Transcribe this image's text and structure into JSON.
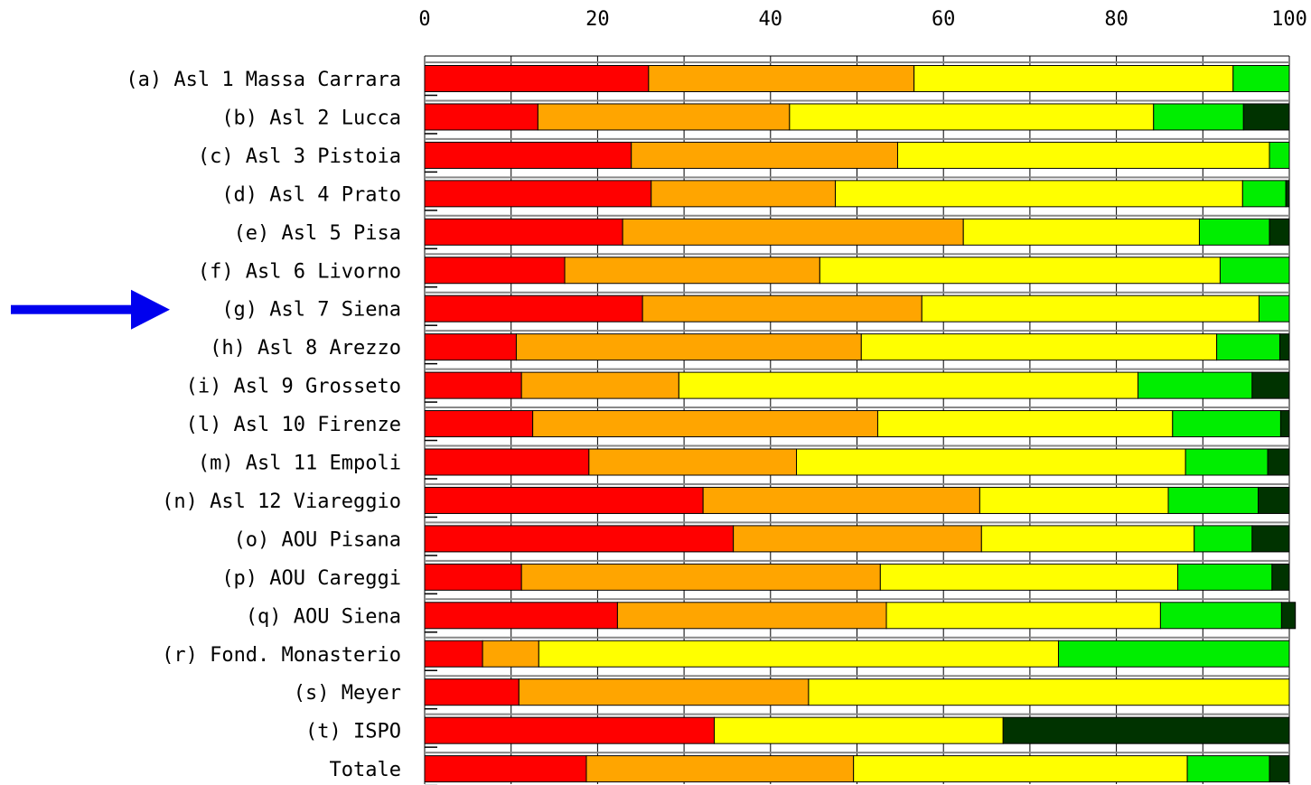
{
  "chart_data": {
    "type": "bar",
    "orientation": "horizontal",
    "stacked": true,
    "xlim": [
      0,
      100
    ],
    "xticks": [
      "0",
      "20",
      "40",
      "60",
      "80",
      "100"
    ],
    "grid": true,
    "categories": [
      "(a) Asl 1 Massa Carrara",
      "(b) Asl 2 Lucca",
      "(c) Asl 3 Pistoia",
      "(d) Asl 4 Prato",
      "(e) Asl 5 Pisa",
      "(f) Asl 6 Livorno",
      "(g) Asl 7 Siena",
      "(h) Asl 8 Arezzo",
      "(i) Asl 9 Grosseto",
      "(l) Asl 10 Firenze",
      "(m) Asl 11 Empoli",
      "(n) Asl 12 Viareggio",
      "(o) AOU Pisana",
      "(p) AOU Careggi",
      "(q) AOU Siena",
      "(r) Fond. Monasterio",
      "(s) Meyer",
      "(t) ISPO",
      "Totale"
    ],
    "highlighted_category": "(g) Asl 7 Siena",
    "series": [
      {
        "color": "#ff0000",
        "values": [
          25.9,
          13.1,
          23.9,
          26.2,
          22.9,
          16.2,
          25.2,
          10.6,
          11.2,
          12.5,
          19.0,
          32.2,
          35.7,
          11.2,
          22.3,
          6.7,
          10.9,
          33.5,
          18.7
        ]
      },
      {
        "color": "#ffa500",
        "values": [
          30.7,
          29.1,
          30.8,
          21.3,
          39.4,
          29.5,
          32.3,
          39.9,
          18.2,
          39.9,
          24.0,
          32.0,
          28.7,
          41.5,
          31.1,
          6.5,
          33.5,
          0.0,
          30.9
        ]
      },
      {
        "color": "#ffff00",
        "values": [
          36.9,
          42.1,
          43.0,
          47.1,
          27.3,
          46.3,
          39.0,
          41.1,
          53.1,
          34.1,
          45.0,
          21.8,
          24.6,
          34.4,
          31.7,
          60.1,
          55.6,
          33.4,
          38.6
        ]
      },
      {
        "color": "#00ee00",
        "values": [
          6.5,
          10.4,
          2.3,
          5.0,
          8.1,
          8.0,
          3.5,
          7.3,
          13.2,
          12.5,
          9.5,
          10.4,
          6.7,
          10.9,
          14.0,
          26.7,
          0.0,
          0.0,
          9.5
        ]
      },
      {
        "color": "#003300",
        "values": [
          0.0,
          5.3,
          0.0,
          0.4,
          2.3,
          0.0,
          0.0,
          1.1,
          4.3,
          1.0,
          2.5,
          3.6,
          4.3,
          2.0,
          1.6,
          0.0,
          0.0,
          33.1,
          2.3
        ]
      }
    ]
  },
  "annotation": {
    "arrow_color": "#0000ee",
    "arrow_target": "(g) Asl 7 Siena"
  }
}
